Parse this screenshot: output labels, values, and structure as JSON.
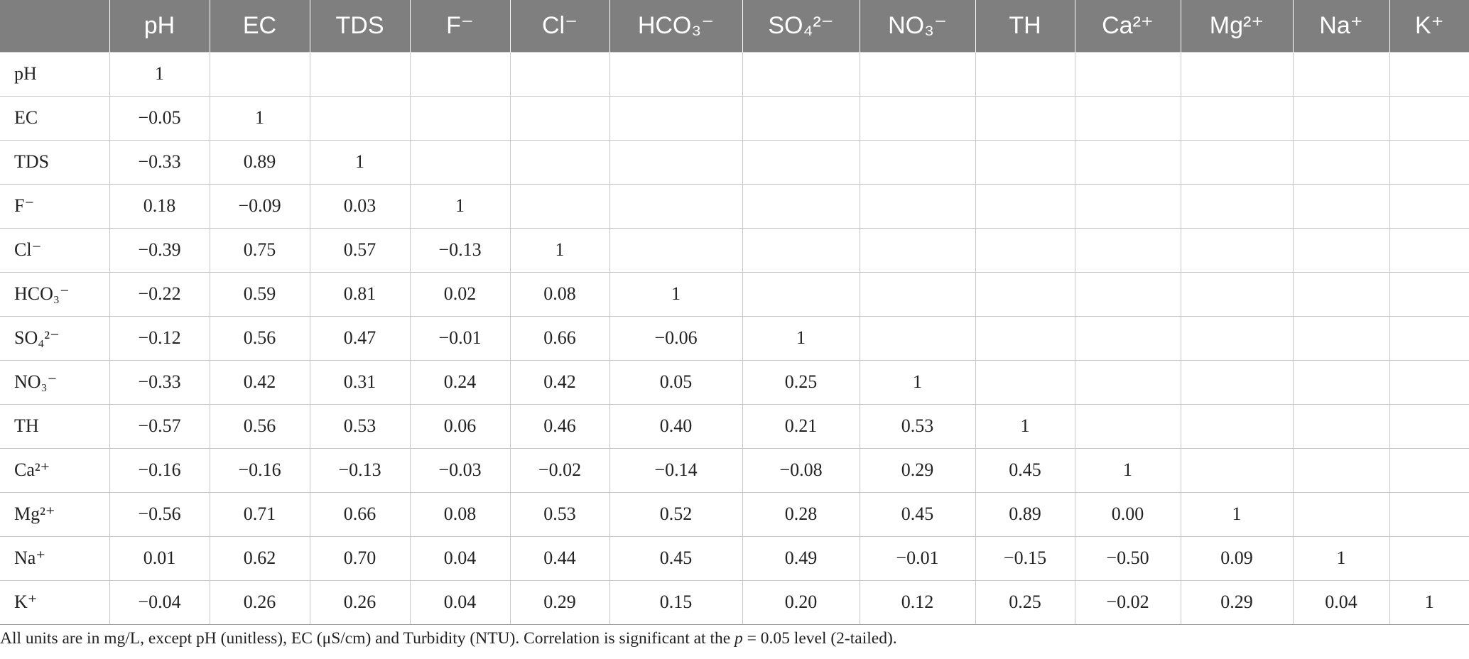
{
  "table": {
    "corner": "",
    "columns": [
      "pH",
      "EC",
      "TDS",
      "F⁻",
      "Cl⁻",
      "HCO₃⁻",
      "SO₄²⁻",
      "NO₃⁻",
      "TH",
      "Ca²⁺",
      "Mg²⁺",
      "Na⁺",
      "K⁺"
    ],
    "rows": [
      {
        "label": "pH",
        "values": [
          "1",
          "",
          "",
          "",
          "",
          "",
          "",
          "",
          "",
          "",
          "",
          "",
          ""
        ]
      },
      {
        "label": "EC",
        "values": [
          "−0.05",
          "1",
          "",
          "",
          "",
          "",
          "",
          "",
          "",
          "",
          "",
          "",
          ""
        ]
      },
      {
        "label": "TDS",
        "values": [
          "−0.33",
          "0.89",
          "1",
          "",
          "",
          "",
          "",
          "",
          "",
          "",
          "",
          "",
          ""
        ]
      },
      {
        "label": "F⁻",
        "values": [
          "0.18",
          "−0.09",
          "0.03",
          "1",
          "",
          "",
          "",
          "",
          "",
          "",
          "",
          "",
          ""
        ]
      },
      {
        "label": "Cl⁻",
        "values": [
          "−0.39",
          "0.75",
          "0.57",
          "−0.13",
          "1",
          "",
          "",
          "",
          "",
          "",
          "",
          "",
          ""
        ]
      },
      {
        "label": "HCO₃⁻",
        "values": [
          "−0.22",
          "0.59",
          "0.81",
          "0.02",
          "0.08",
          "1",
          "",
          "",
          "",
          "",
          "",
          "",
          ""
        ]
      },
      {
        "label": "SO₄²⁻",
        "values": [
          "−0.12",
          "0.56",
          "0.47",
          "−0.01",
          "0.66",
          "−0.06",
          "1",
          "",
          "",
          "",
          "",
          "",
          ""
        ]
      },
      {
        "label": "NO₃⁻",
        "values": [
          "−0.33",
          "0.42",
          "0.31",
          "0.24",
          "0.42",
          "0.05",
          "0.25",
          "1",
          "",
          "",
          "",
          "",
          ""
        ]
      },
      {
        "label": "TH",
        "values": [
          "−0.57",
          "0.56",
          "0.53",
          "0.06",
          "0.46",
          "0.40",
          "0.21",
          "0.53",
          "1",
          "",
          "",
          "",
          ""
        ]
      },
      {
        "label": "Ca²⁺",
        "values": [
          "−0.16",
          "−0.16",
          "−0.13",
          "−0.03",
          "−0.02",
          "−0.14",
          "−0.08",
          "0.29",
          "0.45",
          "1",
          "",
          "",
          ""
        ]
      },
      {
        "label": "Mg²⁺",
        "values": [
          "−0.56",
          "0.71",
          "0.66",
          "0.08",
          "0.53",
          "0.52",
          "0.28",
          "0.45",
          "0.89",
          "0.00",
          "1",
          "",
          ""
        ]
      },
      {
        "label": "Na⁺",
        "values": [
          "0.01",
          "0.62",
          "0.70",
          "0.04",
          "0.44",
          "0.45",
          "0.49",
          "−0.01",
          "−0.15",
          "−0.50",
          "0.09",
          "1",
          ""
        ]
      },
      {
        "label": "K⁺",
        "values": [
          "−0.04",
          "0.26",
          "0.26",
          "0.04",
          "0.29",
          "0.15",
          "0.20",
          "0.12",
          "0.25",
          "−0.02",
          "0.29",
          "0.04",
          "1"
        ]
      }
    ]
  },
  "footnote": {
    "before": "All units are in mg/L, except pH (unitless), EC (μS/cm) and Turbidity (NTU). Correlation is significant at the ",
    "p": "p",
    "after": " = 0.05 level (2-tailed)."
  },
  "colors": {
    "header_bg": "#7f7f7f",
    "header_text": "#ffffff",
    "grid": "#c7c7c7"
  }
}
